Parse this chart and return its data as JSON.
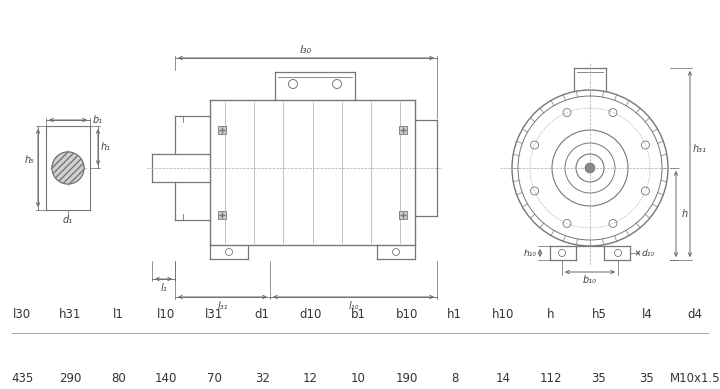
{
  "bg_color": "#ffffff",
  "table_headers": [
    "l30",
    "h31",
    "l1",
    "l10",
    "l31",
    "d1",
    "d10",
    "b1",
    "b10",
    "h1",
    "h10",
    "h",
    "h5",
    "l4",
    "d4"
  ],
  "table_values": [
    "435",
    "290",
    "80",
    "140",
    "70",
    "32",
    "12",
    "10",
    "190",
    "8",
    "14",
    "112",
    "35",
    "35",
    "M10x1.5"
  ],
  "line_color": "#777777",
  "text_color": "#444444",
  "dim_color": "#666666"
}
